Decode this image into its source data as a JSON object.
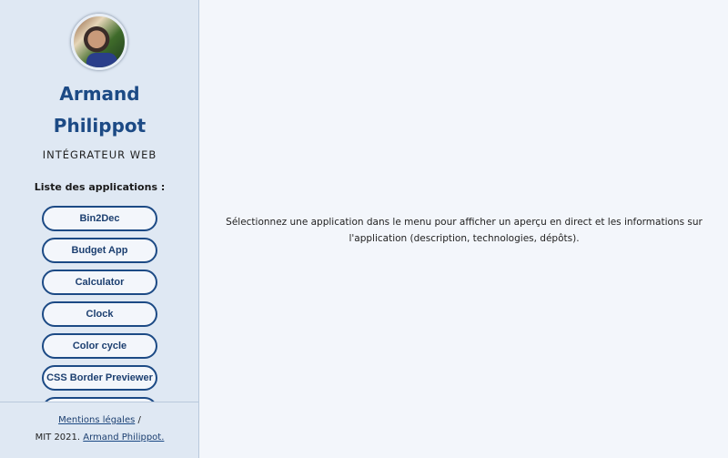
{
  "profile": {
    "first_name": "Armand",
    "last_name": "Philippot",
    "role": "INTÉGRATEUR WEB"
  },
  "apps": {
    "label": "Liste des applications :",
    "items": [
      "Bin2Dec",
      "Budget App",
      "Calculator",
      "Clock",
      "Color cycle",
      "CSS Border Previewer",
      ""
    ]
  },
  "footer": {
    "legal": "Mentions légales",
    "sep": "/",
    "license": "MIT 2021.",
    "author": "Armand Philippot."
  },
  "main": {
    "message": "Sélectionnez une application dans le menu pour afficher un aperçu en direct et les informations sur l'application (description, technologies, dépôts)."
  }
}
